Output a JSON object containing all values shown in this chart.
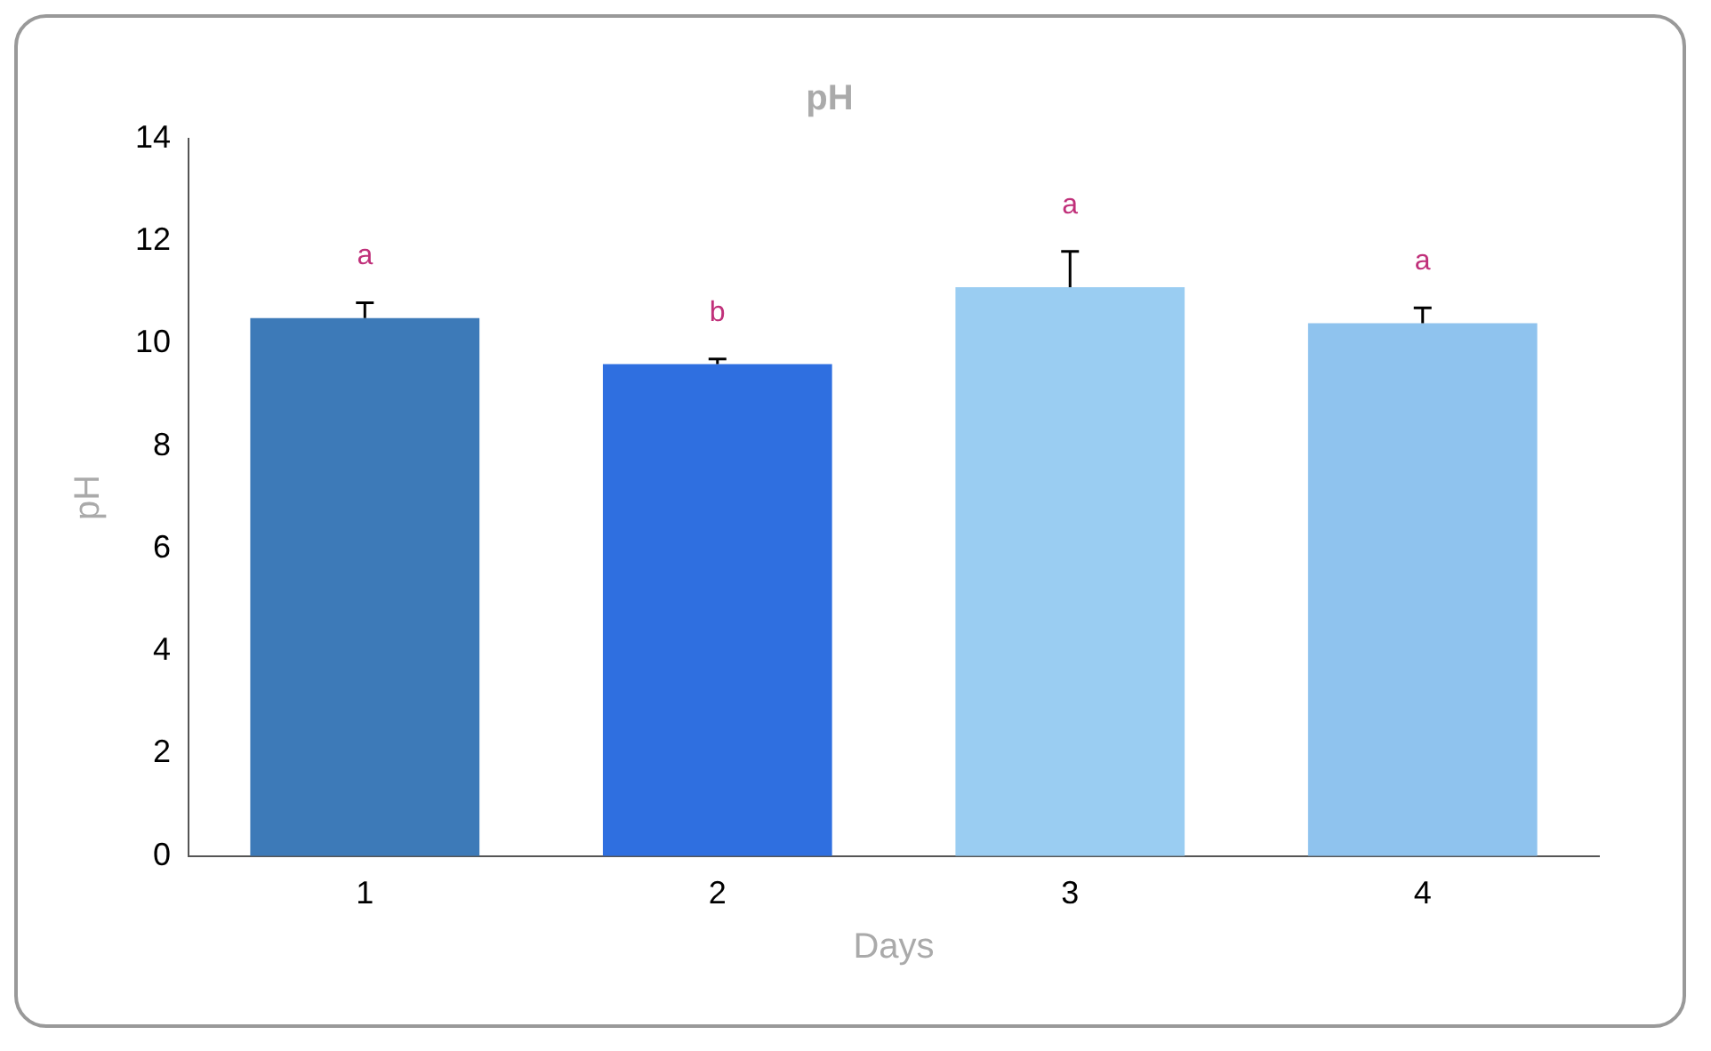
{
  "chart_data": {
    "type": "bar",
    "title": "pH",
    "xlabel": "Days",
    "ylabel": "pH",
    "categories": [
      "1",
      "2",
      "3",
      "4"
    ],
    "values": [
      10.5,
      9.6,
      11.1,
      10.4
    ],
    "colors": [
      "#3d7ab8",
      "#2f6fe0",
      "#9acdf2",
      "#8fc3ee"
    ],
    "errors": [
      [
        10.5,
        10.8
      ],
      [
        9.6,
        9.7
      ],
      [
        11.1,
        11.8
      ],
      [
        10.4,
        10.7
      ]
    ],
    "ylim": [
      0,
      14
    ],
    "yticks": [
      0,
      2,
      4,
      6,
      8,
      10,
      12,
      14
    ],
    "grid": false,
    "legend": false,
    "annotations": [
      "a",
      "b",
      "a",
      "a"
    ]
  }
}
